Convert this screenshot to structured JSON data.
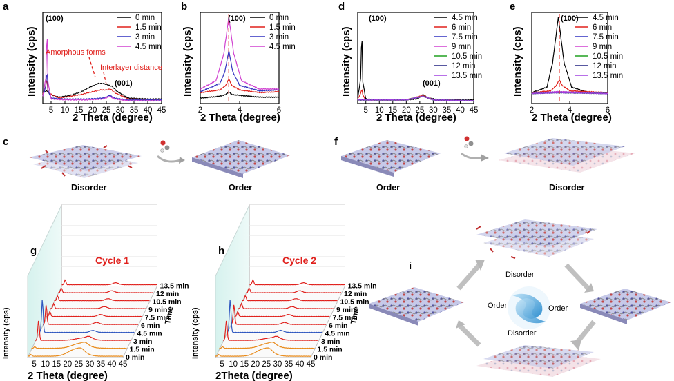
{
  "panels": {
    "a": {
      "letter": "a",
      "ylabel": "Intensity (cps)",
      "xlabel": "2 Theta (degree)",
      "peaks": [
        "(100)",
        "(001)"
      ],
      "annotations": [
        "Amorphous forms",
        "Interlayer distance"
      ],
      "legend": [
        "0 min",
        "1.5 min",
        "3 min",
        "4.5 min"
      ]
    },
    "b": {
      "letter": "b",
      "ylabel": "Intensity (cps)",
      "xlabel": "2 Theta (degree)",
      "peaks": [
        "(100)"
      ],
      "legend": [
        "0 min",
        "1.5 min",
        "3 min",
        "4.5 min"
      ]
    },
    "d": {
      "letter": "d",
      "ylabel": "Intensity (cps)",
      "xlabel": "2 Theta (degree)",
      "peaks": [
        "(100)",
        "(001)"
      ],
      "legend": [
        "4.5 min",
        "6 min",
        "7.5 min",
        "9 min",
        "10.5 min",
        "12 min",
        "13.5 min"
      ]
    },
    "e": {
      "letter": "e",
      "ylabel": "Intensity (cps)",
      "xlabel": "2 Theta (degree)",
      "peaks": [
        "(100)"
      ],
      "legend": [
        "4.5 min",
        "6 min",
        "7.5 min",
        "9 min",
        "10.5 min",
        "12 min",
        "13.5 min"
      ]
    },
    "c": {
      "letter": "c",
      "left": "Disorder",
      "right": "Order"
    },
    "f": {
      "letter": "f",
      "left": "Order",
      "right": "Disorder"
    },
    "g": {
      "letter": "g",
      "title": "Cycle 1",
      "ylabel": "Intensity (cps)",
      "xlabel": "2 Theta (degree)",
      "zlabel": "Time",
      "times": [
        "13.5 min",
        "12 min",
        "10.5 min",
        "9 min",
        "7.5 min",
        "6 min",
        "4.5 min",
        "3 min",
        "1.5 min",
        "0 min"
      ]
    },
    "h": {
      "letter": "h",
      "title": "Cycle 2",
      "ylabel": "Intensity (cps)",
      "xlabel": "2Theta (degree)",
      "zlabel": "Time",
      "times": [
        "13.5 min",
        "12 min",
        "10.5 min",
        "9 min",
        "7.5 min",
        "6 min",
        "4.5 min",
        "3 min",
        "1.5 min",
        "0 min"
      ]
    },
    "i": {
      "letter": "i",
      "top": "Disorder",
      "bottom": "Disorder",
      "left": "Order",
      "right": "Order"
    }
  },
  "chart_data": [
    {
      "type": "line",
      "id": "a",
      "xlabel": "2 Theta (degree)",
      "ylabel": "Intensity (cps)",
      "xlim": [
        2,
        45
      ],
      "xticks": [
        5,
        10,
        15,
        20,
        25,
        30,
        35,
        40,
        45
      ],
      "series": [
        {
          "name": "0 min",
          "color": "#000000",
          "points": [
            [
              2,
              0.12
            ],
            [
              3.5,
              0.14
            ],
            [
              4.5,
              0.1
            ],
            [
              8,
              0.07
            ],
            [
              12,
              0.09
            ],
            [
              16,
              0.13
            ],
            [
              19,
              0.18
            ],
            [
              22,
              0.22
            ],
            [
              24,
              0.22
            ],
            [
              26,
              0.2
            ],
            [
              27,
              0.19
            ],
            [
              29,
              0.13
            ],
            [
              33,
              0.06
            ],
            [
              40,
              0.05
            ],
            [
              45,
              0.05
            ]
          ]
        },
        {
          "name": "1.5 min",
          "color": "#e0201c",
          "points": [
            [
              2,
              0.1
            ],
            [
              3.2,
              0.2
            ],
            [
              3.5,
              0.3
            ],
            [
              3.8,
              0.12
            ],
            [
              8,
              0.06
            ],
            [
              12,
              0.08
            ],
            [
              16,
              0.1
            ],
            [
              20,
              0.13
            ],
            [
              23,
              0.15
            ],
            [
              25,
              0.15
            ],
            [
              26.5,
              0.16
            ],
            [
              28,
              0.12
            ],
            [
              33,
              0.05
            ],
            [
              45,
              0.04
            ]
          ]
        },
        {
          "name": "3 min",
          "color": "#3030c0",
          "points": [
            [
              2,
              0.08
            ],
            [
              3.2,
              0.2
            ],
            [
              3.5,
              0.42
            ],
            [
              3.8,
              0.15
            ],
            [
              5,
              0.06
            ],
            [
              10,
              0.05
            ],
            [
              18,
              0.05
            ],
            [
              24,
              0.06
            ],
            [
              26.2,
              0.09
            ],
            [
              28,
              0.06
            ],
            [
              33,
              0.04
            ],
            [
              45,
              0.04
            ]
          ]
        },
        {
          "name": "4.5 min",
          "color": "#d040d0",
          "points": [
            [
              2,
              0.08
            ],
            [
              3.2,
              0.3
            ],
            [
              3.5,
              0.98
            ],
            [
              3.8,
              0.25
            ],
            [
              5,
              0.05
            ],
            [
              10,
              0.04
            ],
            [
              18,
              0.04
            ],
            [
              24,
              0.05
            ],
            [
              26.2,
              0.08
            ],
            [
              28,
              0.05
            ],
            [
              33,
              0.03
            ],
            [
              45,
              0.03
            ]
          ]
        }
      ]
    },
    {
      "type": "line",
      "id": "b",
      "xlabel": "2 Theta (degree)",
      "ylabel": "Intensity (cps)",
      "xlim": [
        2,
        6
      ],
      "xticks": [
        2,
        4,
        6
      ],
      "series": [
        {
          "name": "0 min",
          "color": "#000000",
          "points": [
            [
              2,
              0.06
            ],
            [
              3,
              0.08
            ],
            [
              3.3,
              0.1
            ],
            [
              3.45,
              0.13
            ],
            [
              3.6,
              0.1
            ],
            [
              4,
              0.09
            ],
            [
              5,
              0.07
            ],
            [
              6,
              0.07
            ]
          ]
        },
        {
          "name": "1.5 min",
          "color": "#e0201c",
          "points": [
            [
              2,
              0.12
            ],
            [
              3,
              0.15
            ],
            [
              3.3,
              0.2
            ],
            [
              3.45,
              0.27
            ],
            [
              3.6,
              0.2
            ],
            [
              4,
              0.15
            ],
            [
              5,
              0.12
            ],
            [
              6,
              0.13
            ]
          ]
        },
        {
          "name": "3 min",
          "color": "#3030c0",
          "points": [
            [
              2,
              0.13
            ],
            [
              3,
              0.22
            ],
            [
              3.25,
              0.35
            ],
            [
              3.45,
              0.58
            ],
            [
              3.65,
              0.35
            ],
            [
              4,
              0.2
            ],
            [
              5,
              0.14
            ],
            [
              6,
              0.15
            ]
          ]
        },
        {
          "name": "4.5 min",
          "color": "#d040d0",
          "points": [
            [
              2,
              0.16
            ],
            [
              2.8,
              0.25
            ],
            [
              3.2,
              0.55
            ],
            [
              3.45,
              0.95
            ],
            [
              3.7,
              0.55
            ],
            [
              4.1,
              0.25
            ],
            [
              5,
              0.16
            ],
            [
              6,
              0.16
            ]
          ]
        }
      ]
    },
    {
      "type": "line",
      "id": "d",
      "xlabel": "2 Theta (degree)",
      "ylabel": "Intensity (cps)",
      "xlim": [
        2,
        45
      ],
      "xticks": [
        5,
        10,
        15,
        20,
        25,
        30,
        35,
        40,
        45
      ],
      "series": [
        {
          "name": "4.5 min",
          "color": "#000000",
          "points": [
            [
              2,
              0.05
            ],
            [
              3.2,
              0.3
            ],
            [
              3.5,
              0.95
            ],
            [
              3.8,
              0.25
            ],
            [
              5,
              0.05
            ],
            [
              10,
              0.04
            ],
            [
              20,
              0.04
            ],
            [
              24,
              0.05
            ],
            [
              26.3,
              0.1
            ],
            [
              28,
              0.06
            ],
            [
              33,
              0.04
            ],
            [
              45,
              0.04
            ]
          ]
        },
        {
          "name": "6 min",
          "color": "#e0201c",
          "points": [
            [
              2,
              0.05
            ],
            [
              3.3,
              0.12
            ],
            [
              3.5,
              0.22
            ],
            [
              3.7,
              0.1
            ],
            [
              5,
              0.04
            ],
            [
              20,
              0.04
            ],
            [
              26.3,
              0.09
            ],
            [
              30,
              0.04
            ],
            [
              45,
              0.03
            ]
          ]
        },
        {
          "name": "7.5 min",
          "color": "#3030c0",
          "points": [
            [
              2,
              0.04
            ],
            [
              5,
              0.04
            ],
            [
              20,
              0.04
            ],
            [
              26.3,
              0.08
            ],
            [
              30,
              0.04
            ],
            [
              45,
              0.03
            ]
          ]
        },
        {
          "name": "9 min",
          "color": "#d040d0",
          "points": [
            [
              2,
              0.04
            ],
            [
              5,
              0.04
            ],
            [
              20,
              0.04
            ],
            [
              26.3,
              0.08
            ],
            [
              30,
              0.04
            ],
            [
              45,
              0.03
            ]
          ]
        },
        {
          "name": "10.5 min",
          "color": "#20a020",
          "points": [
            [
              2,
              0.04
            ],
            [
              5,
              0.04
            ],
            [
              20,
              0.04
            ],
            [
              26.3,
              0.08
            ],
            [
              30,
              0.04
            ],
            [
              45,
              0.03
            ]
          ]
        },
        {
          "name": "12 min",
          "color": "#202080",
          "points": [
            [
              2,
              0.04
            ],
            [
              5,
              0.04
            ],
            [
              20,
              0.04
            ],
            [
              26.3,
              0.08
            ],
            [
              30,
              0.04
            ],
            [
              45,
              0.03
            ]
          ]
        },
        {
          "name": "13.5 min",
          "color": "#a040e0",
          "points": [
            [
              2,
              0.04
            ],
            [
              5,
              0.04
            ],
            [
              20,
              0.04
            ],
            [
              26.3,
              0.08
            ],
            [
              30,
              0.04
            ],
            [
              45,
              0.03
            ]
          ]
        }
      ]
    },
    {
      "type": "line",
      "id": "e",
      "xlabel": "2 Theta (degree)",
      "ylabel": "Intensity (cps)",
      "xlim": [
        2,
        6
      ],
      "xticks": [
        2,
        4,
        6
      ],
      "series": [
        {
          "name": "4.5 min",
          "color": "#000000",
          "points": [
            [
              2,
              0.12
            ],
            [
              2.8,
              0.18
            ],
            [
              3.1,
              0.45
            ],
            [
              3.4,
              0.95
            ],
            [
              3.7,
              0.45
            ],
            [
              4.1,
              0.18
            ],
            [
              5,
              0.12
            ],
            [
              6,
              0.12
            ]
          ]
        },
        {
          "name": "6 min",
          "color": "#e0201c",
          "points": [
            [
              2,
              0.12
            ],
            [
              3,
              0.14
            ],
            [
              3.3,
              0.2
            ],
            [
              3.45,
              0.26
            ],
            [
              3.6,
              0.2
            ],
            [
              4,
              0.14
            ],
            [
              6,
              0.12
            ]
          ]
        },
        {
          "name": "7.5 min",
          "color": "#3030c0",
          "points": [
            [
              2,
              0.11
            ],
            [
              3.4,
              0.13
            ],
            [
              6,
              0.11
            ]
          ]
        },
        {
          "name": "9 min",
          "color": "#d040d0",
          "points": [
            [
              2,
              0.11
            ],
            [
              3.4,
              0.13
            ],
            [
              6,
              0.11
            ]
          ]
        },
        {
          "name": "10.5 min",
          "color": "#20a020",
          "points": [
            [
              2,
              0.11
            ],
            [
              3.4,
              0.12
            ],
            [
              6,
              0.11
            ]
          ]
        },
        {
          "name": "12 min",
          "color": "#202080",
          "points": [
            [
              2,
              0.11
            ],
            [
              3.4,
              0.12
            ],
            [
              6,
              0.11
            ]
          ]
        },
        {
          "name": "13.5 min",
          "color": "#a040e0",
          "points": [
            [
              2,
              0.11
            ],
            [
              3.4,
              0.12
            ],
            [
              6,
              0.11
            ]
          ]
        }
      ]
    },
    {
      "type": "line",
      "id": "g",
      "title": "Cycle 1",
      "xlabel": "2 Theta (degree)",
      "ylabel": "Intensity (cps)",
      "xlim": [
        2,
        45
      ],
      "xticks": [
        5,
        10,
        15,
        20,
        25,
        30,
        35,
        40,
        45
      ],
      "series_times": [
        "0 min",
        "1.5 min",
        "3 min",
        "4.5 min",
        "6 min",
        "7.5 min",
        "9 min",
        "10.5 min",
        "12 min",
        "13.5 min"
      ]
    },
    {
      "type": "line",
      "id": "h",
      "title": "Cycle 2",
      "xlabel": "2Theta (degree)",
      "ylabel": "Intensity (cps)",
      "xlim": [
        2,
        45
      ],
      "xticks": [
        5,
        10,
        15,
        20,
        25,
        30,
        35,
        40,
        45
      ],
      "series_times": [
        "0 min",
        "1.5 min",
        "3 min",
        "4.5 min",
        "6 min",
        "7.5 min",
        "9 min",
        "10.5 min",
        "12 min",
        "13.5 min"
      ]
    }
  ]
}
